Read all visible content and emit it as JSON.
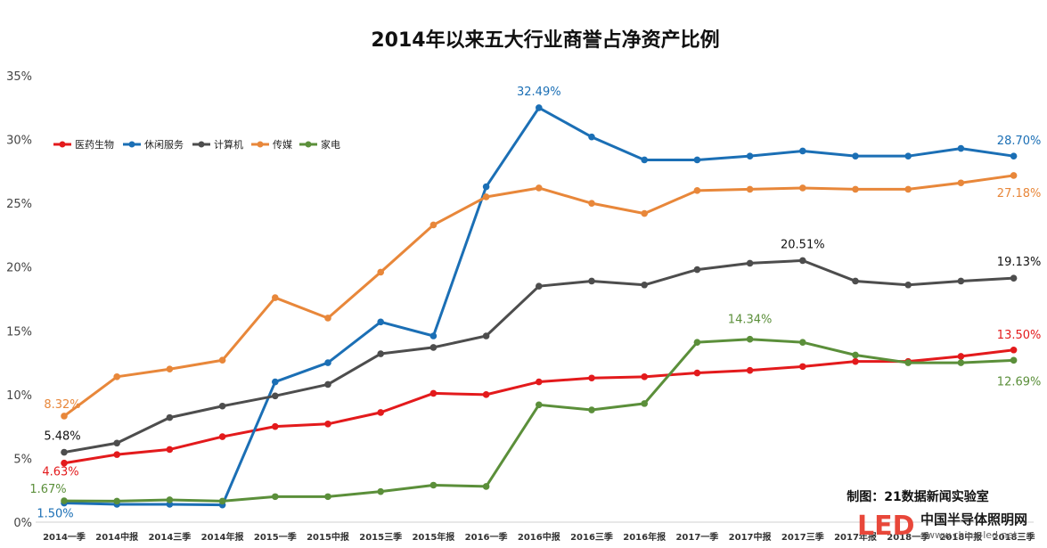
{
  "chart_data": {
    "type": "line",
    "title": "2014年以来五大行业商誉占净资产比例",
    "ylim": [
      0,
      35
    ],
    "y_ticks": [
      "0%",
      "5%",
      "10%",
      "15%",
      "20%",
      "25%",
      "30%",
      "35%"
    ],
    "grid": false,
    "legend_position": "top-left",
    "categories": [
      "2014一季",
      "2014中报",
      "2014三季",
      "2014年报",
      "2015一季",
      "2015中报",
      "2015三季",
      "2015年报",
      "2016一季",
      "2016中报",
      "2016三季",
      "2016年报",
      "2017一季",
      "2017中报",
      "2017三季",
      "2017年报",
      "2018一季",
      "2018中报",
      "2018三季"
    ],
    "series": [
      {
        "name": "医药生物",
        "color": "#e31a1c",
        "values": [
          4.63,
          5.3,
          5.7,
          6.7,
          7.5,
          7.7,
          8.6,
          10.1,
          10.0,
          11.0,
          11.3,
          11.4,
          11.7,
          11.9,
          12.2,
          12.6,
          12.6,
          13.0,
          13.5
        ]
      },
      {
        "name": "休闲服务",
        "color": "#1b6fb5",
        "values": [
          1.5,
          1.4,
          1.4,
          1.35,
          11.0,
          12.5,
          15.7,
          14.6,
          26.3,
          32.49,
          30.2,
          28.4,
          28.4,
          28.7,
          29.1,
          28.7,
          28.7,
          29.3,
          28.7
        ]
      },
      {
        "name": "计算机",
        "color": "#4d4d4d",
        "values": [
          5.48,
          6.2,
          8.2,
          9.1,
          9.9,
          10.8,
          13.2,
          13.7,
          14.6,
          18.5,
          18.9,
          18.6,
          19.8,
          20.3,
          20.51,
          18.9,
          18.6,
          18.9,
          19.13
        ]
      },
      {
        "name": "传媒",
        "color": "#e8873a",
        "values": [
          8.32,
          11.4,
          12.0,
          12.7,
          17.6,
          16.0,
          19.6,
          23.3,
          25.5,
          26.2,
          25.0,
          24.2,
          26.0,
          26.1,
          26.2,
          26.1,
          26.1,
          26.6,
          27.18
        ]
      },
      {
        "name": "家电",
        "color": "#5b8f3a",
        "values": [
          1.67,
          1.65,
          1.75,
          1.65,
          2.0,
          2.0,
          2.4,
          2.9,
          2.8,
          9.2,
          8.8,
          9.3,
          14.1,
          14.34,
          14.1,
          13.1,
          12.5,
          12.5,
          12.69
        ]
      }
    ],
    "annotations": [
      {
        "text": "8.32%",
        "series": 3,
        "index": 0
      },
      {
        "text": "5.48%",
        "series": 2,
        "index": 0
      },
      {
        "text": "4.63%",
        "series": 0,
        "index": 0
      },
      {
        "text": "1.67%",
        "series": 4,
        "index": 0
      },
      {
        "text": "1.50%",
        "series": 1,
        "index": 0
      },
      {
        "text": "32.49%",
        "series": 1,
        "index": 9
      },
      {
        "text": "20.51%",
        "series": 2,
        "index": 14
      },
      {
        "text": "14.34%",
        "series": 4,
        "index": 13
      },
      {
        "text": "28.70%",
        "series": 1,
        "index": 18
      },
      {
        "text": "27.18%",
        "series": 3,
        "index": 18
      },
      {
        "text": "19.13%",
        "series": 2,
        "index": 18
      },
      {
        "text": "13.50%",
        "series": 0,
        "index": 18
      },
      {
        "text": "12.69%",
        "series": 4,
        "index": 18
      }
    ]
  },
  "credit": "制图：21数据新闻实验室",
  "logo": {
    "mark": "LED",
    "name": "中国半导体照明网",
    "url": "www.china-led.net"
  }
}
